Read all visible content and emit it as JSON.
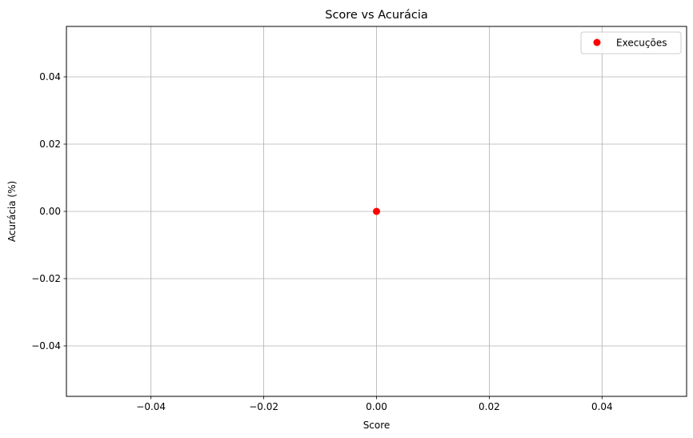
{
  "chart_data": {
    "type": "scatter",
    "title": "Score vs Acurácia",
    "xlabel": "Score",
    "ylabel": "Acurácia (%)",
    "xlim": [
      -0.055,
      0.055
    ],
    "ylim": [
      -0.055,
      0.055
    ],
    "xticks": [
      -0.04,
      -0.02,
      0.0,
      0.02,
      0.04
    ],
    "xtick_labels": [
      "−0.04",
      "−0.02",
      "0.00",
      "0.02",
      "0.04"
    ],
    "yticks": [
      -0.04,
      -0.02,
      0.0,
      0.02,
      0.04
    ],
    "ytick_labels": [
      "−0.04",
      "−0.02",
      "0.00",
      "0.02",
      "0.04"
    ],
    "grid": true,
    "legend_position": "top-right",
    "series": [
      {
        "name": "Execuções",
        "color": "#ff0000",
        "points": [
          {
            "x": 0.0,
            "y": 0.0
          }
        ]
      }
    ]
  }
}
